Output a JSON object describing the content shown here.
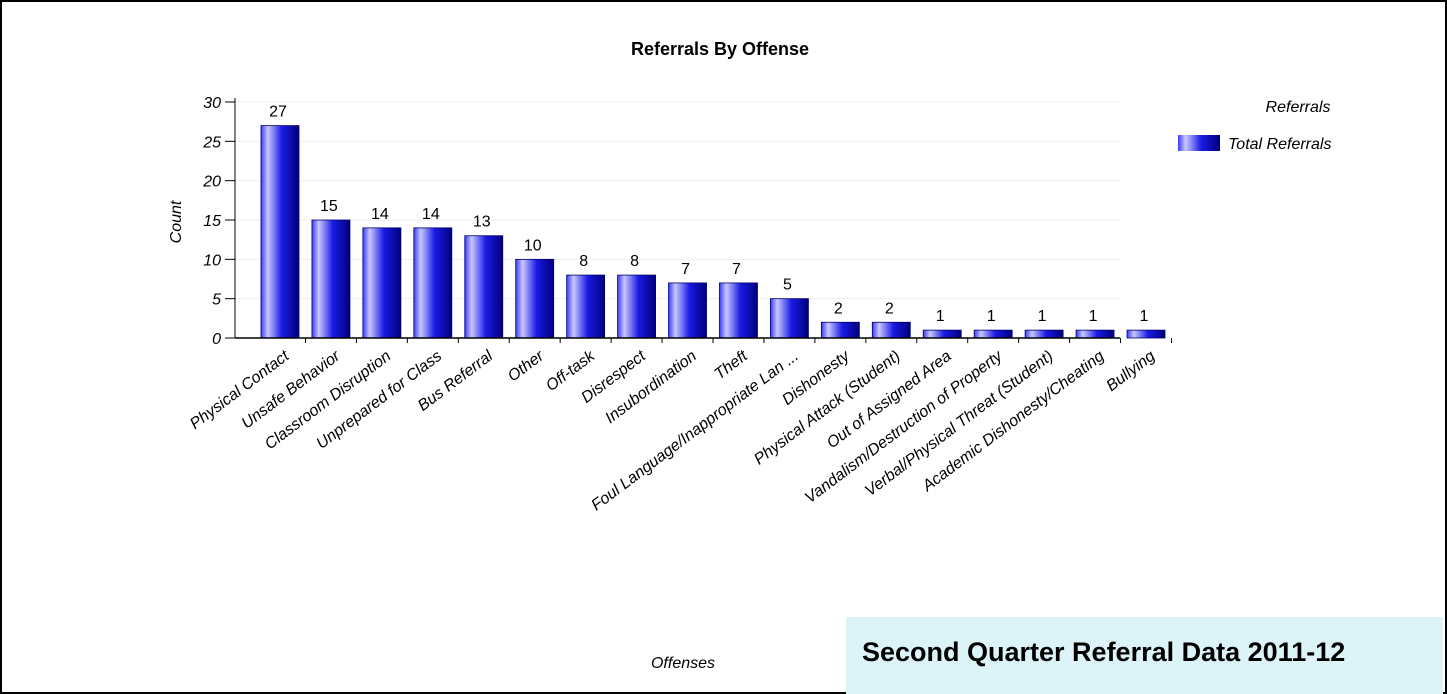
{
  "chart_data": {
    "type": "bar",
    "title": "Referrals By Offense",
    "xlabel": "Offenses",
    "ylabel": "Count",
    "ylim": [
      0,
      30
    ],
    "yticks": [
      "0",
      "5",
      "10",
      "15",
      "20",
      "25",
      "30"
    ],
    "grid": true,
    "legend": {
      "title": "Referrals",
      "position": "top-right"
    },
    "categories": [
      "Physical Contact",
      "Unsafe Behavior",
      "Classroom Disruption",
      "Unprepared for Class",
      "Bus Referral",
      "Other",
      "Off-task",
      "Disrespect",
      "Insubordination",
      "Theft",
      "Foul Language/Inappropriate Lan ...",
      "Dishonesty",
      "Physical Attack (Student)",
      "Out of Assigned Area",
      "Vandalism/Destruction of Property",
      "Verbal/Physical Threat (Student)",
      "Academic Dishonesty/Cheating",
      "Bullying"
    ],
    "series": [
      {
        "name": "Total Referrals",
        "color": "#0000ff",
        "values": [
          27,
          15,
          14,
          14,
          13,
          10,
          8,
          8,
          7,
          7,
          5,
          2,
          2,
          1,
          1,
          1,
          1,
          1
        ]
      }
    ]
  },
  "caption": "Second Quarter Referral Data 2011-12"
}
